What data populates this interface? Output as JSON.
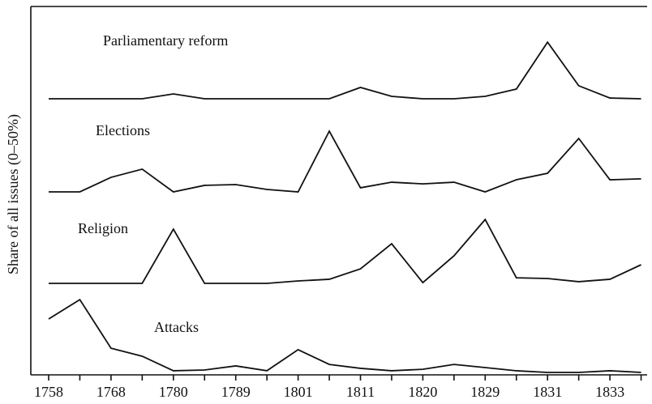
{
  "chart_data": {
    "type": "line",
    "ylabel": "Share of all issues (0–50%)",
    "categories": [
      "1758",
      null,
      "1768",
      null,
      "1780",
      null,
      "1789",
      null,
      "1801",
      null,
      "1811",
      null,
      "1820",
      null,
      "1829",
      null,
      "1831",
      null,
      "1833",
      null
    ],
    "ylim": [
      0,
      50
    ],
    "series": [
      {
        "name": "Parliamentary reform",
        "color": "#111111",
        "values": [
          0,
          0,
          0,
          0,
          2.6,
          0,
          0,
          0,
          0,
          0,
          6.1,
          1.3,
          0,
          0,
          1.3,
          5.2,
          30.4,
          7,
          0.4,
          0
        ]
      },
      {
        "name": "Elections",
        "color": "#111111",
        "values": [
          0,
          0,
          7.8,
          12.2,
          0,
          3.5,
          3.9,
          1.3,
          0,
          32.6,
          2.2,
          5.2,
          4.3,
          5.2,
          0,
          6.5,
          10,
          28.7,
          6.5,
          7
        ]
      },
      {
        "name": "Religion",
        "color": "#111111",
        "values": [
          0,
          0,
          0,
          0,
          29.1,
          0,
          0,
          0,
          1.3,
          2.2,
          7.8,
          21.3,
          0.4,
          14.8,
          34.3,
          3,
          2.6,
          0.9,
          2.2,
          10
        ]
      },
      {
        "name": "Attacks",
        "color": "#111111",
        "values": [
          28.7,
          39.1,
          13,
          8.7,
          0.9,
          1.3,
          3.5,
          0.9,
          12.2,
          4.3,
          2.2,
          0.9,
          1.7,
          4.3,
          2.6,
          0.9,
          0,
          0,
          0.9,
          0
        ]
      }
    ]
  }
}
